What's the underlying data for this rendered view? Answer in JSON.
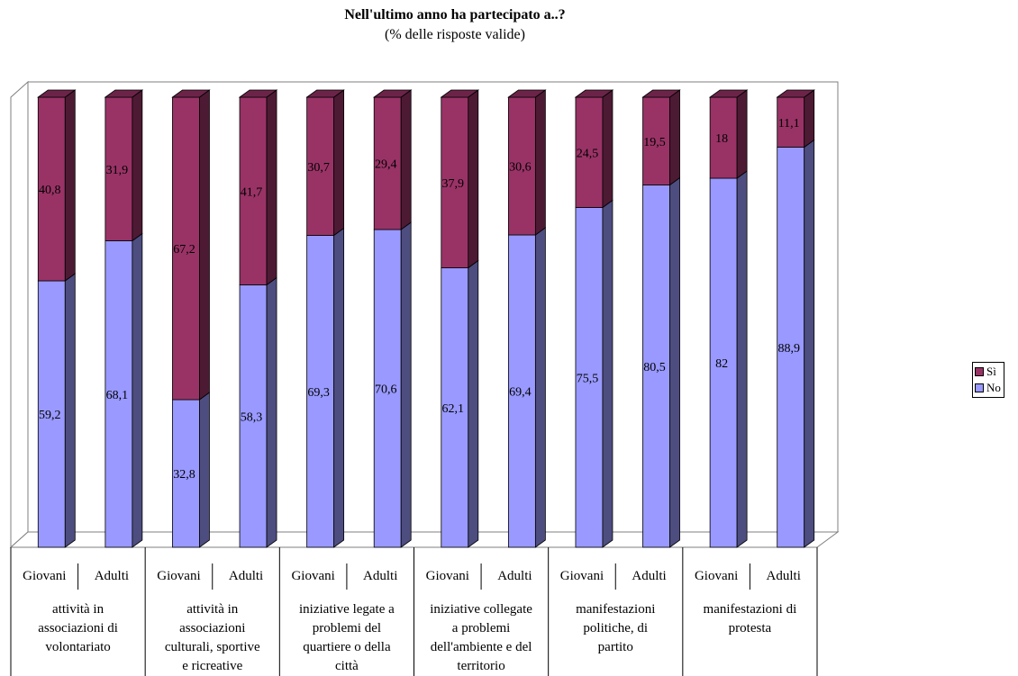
{
  "chart_data": {
    "type": "bar",
    "stacked": true,
    "stacked_percent": true,
    "three_d": true,
    "title": "Nell'ultimo anno ha partecipato a..?",
    "subtitle": "(% delle risposte valide)",
    "groups": [
      "attività in associazioni di volontariato",
      "attività in associazioni culturali, sportive e ricreative",
      "iniziative legate a problemi del quartiere o della città",
      "iniziative collegate a problemi dell'ambiente e del territorio",
      "manifestazioni politiche, di partito",
      "manifestazioni di protesta"
    ],
    "subcategories": [
      "Giovani",
      "Adulti"
    ],
    "categories": [
      "Giovani",
      "Adulti",
      "Giovani",
      "Adulti",
      "Giovani",
      "Adulti",
      "Giovani",
      "Adulti",
      "Giovani",
      "Adulti",
      "Giovani",
      "Adulti"
    ],
    "series": [
      {
        "name": "No",
        "color": "#9999ff",
        "values": [
          59.2,
          68.1,
          32.8,
          58.3,
          69.3,
          70.6,
          62.1,
          69.4,
          75.5,
          80.5,
          82,
          88.9
        ],
        "labels": [
          "59,2",
          "68,1",
          "32,8",
          "58,3",
          "69,3",
          "70,6",
          "62,1",
          "69,4",
          "75,5",
          "80,5",
          "82",
          "88,9"
        ]
      },
      {
        "name": "Sì",
        "color": "#993366",
        "values": [
          40.8,
          31.9,
          67.2,
          41.7,
          30.7,
          29.4,
          37.9,
          30.6,
          24.5,
          19.5,
          18,
          11.1
        ],
        "labels": [
          "40,8",
          "31,9",
          "67,2",
          "41,7",
          "30,7",
          "29,4",
          "37,9",
          "30,6",
          "24,5",
          "19,5",
          "18",
          "11,1"
        ]
      }
    ],
    "ylim": [
      0,
      100
    ],
    "grid": false,
    "legend": {
      "position": "right",
      "order": [
        "Sì",
        "No"
      ]
    }
  }
}
